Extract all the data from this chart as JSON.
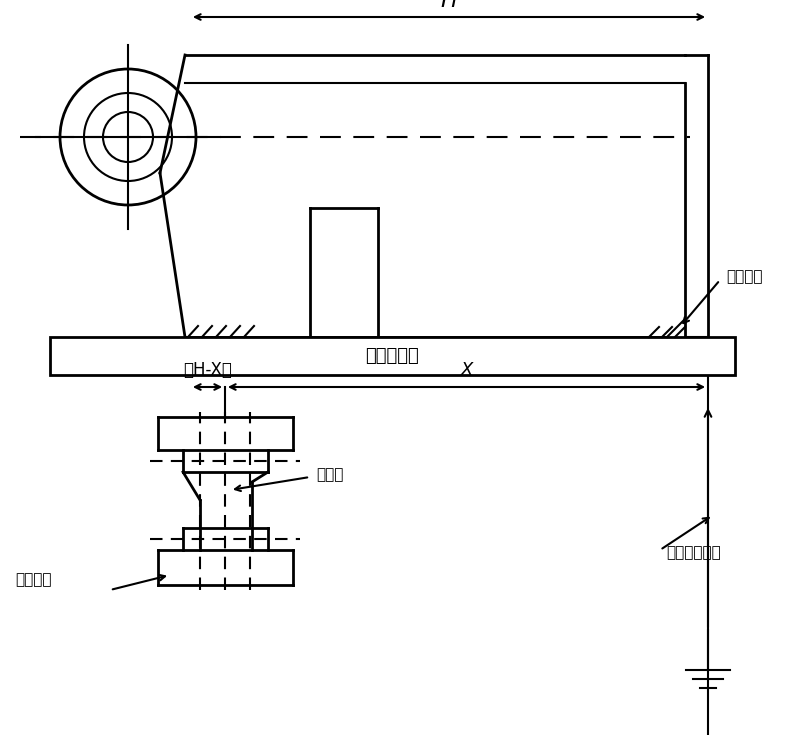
{
  "bg_color": "#ffffff",
  "line_color": "#000000",
  "label_H": "H",
  "label_HX": "（H-X）",
  "label_X": "X",
  "label_flange": "法兰平面",
  "label_table": "机床工作台",
  "label_hole_axis": "孔轴向",
  "label_spindle": "机床主轴方向",
  "label_to_machine": "待加工孔",
  "lw": 1.5,
  "lw2": 2.0
}
